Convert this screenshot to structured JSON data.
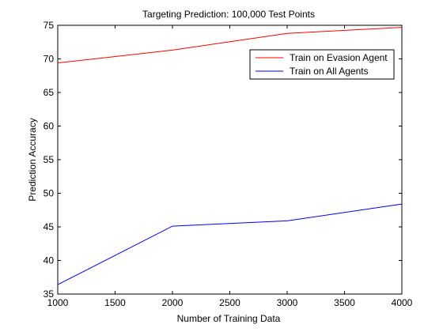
{
  "chart_data": {
    "type": "line",
    "title": "Targeting Prediction: 100,000 Test Points",
    "xlabel": "Number of Training Data",
    "ylabel": "Prediction Accuracy",
    "xlim": [
      1000,
      4000
    ],
    "ylim": [
      35,
      75
    ],
    "xticks": [
      1000,
      1500,
      2000,
      2500,
      3000,
      3500,
      4000
    ],
    "yticks": [
      35,
      40,
      45,
      50,
      55,
      60,
      65,
      70,
      75
    ],
    "grid": false,
    "legend": "top-right",
    "x": [
      1000,
      2000,
      3000,
      4000
    ],
    "series": [
      {
        "name": "Train on Evasion Agent",
        "color": "#ff0000",
        "values": [
          69.4,
          71.3,
          73.8,
          74.7
        ]
      },
      {
        "name": "Train on All Agents",
        "color": "#0000ff",
        "values": [
          36.4,
          45.1,
          45.9,
          48.4
        ]
      }
    ]
  }
}
